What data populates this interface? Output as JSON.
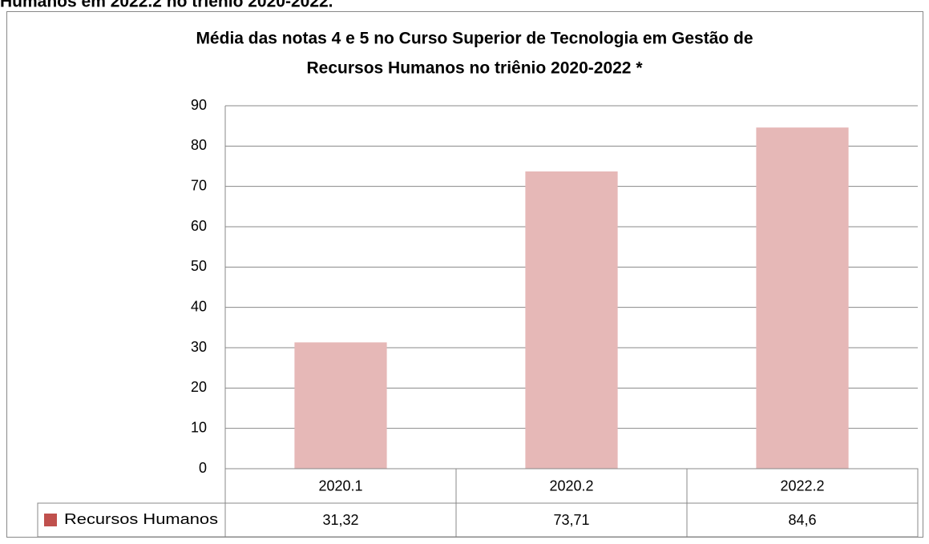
{
  "chart_data": {
    "type": "bar",
    "caption": "Humanos em 2022.2 no triênio 2020-2022.",
    "title": [
      "Média das notas 4 e 5 no Curso Superior de Tecnologia em Gestão de",
      "Recursos Humanos no triênio 2020-2022 *"
    ],
    "categories": [
      "2020.1",
      "2020.2",
      "2022.2"
    ],
    "series": [
      {
        "name": "Recursos Humanos",
        "color": "#e6b8b7",
        "legend_color": "#c0504d",
        "values": [
          31.32,
          73.71,
          84.6
        ],
        "value_labels": [
          "31,32",
          "73,71",
          "84,6"
        ]
      }
    ],
    "ylim": [
      0,
      90
    ],
    "yticks": [
      0,
      10,
      20,
      30,
      40,
      50,
      60,
      70,
      80,
      90
    ],
    "grid": true,
    "data_table": true
  }
}
